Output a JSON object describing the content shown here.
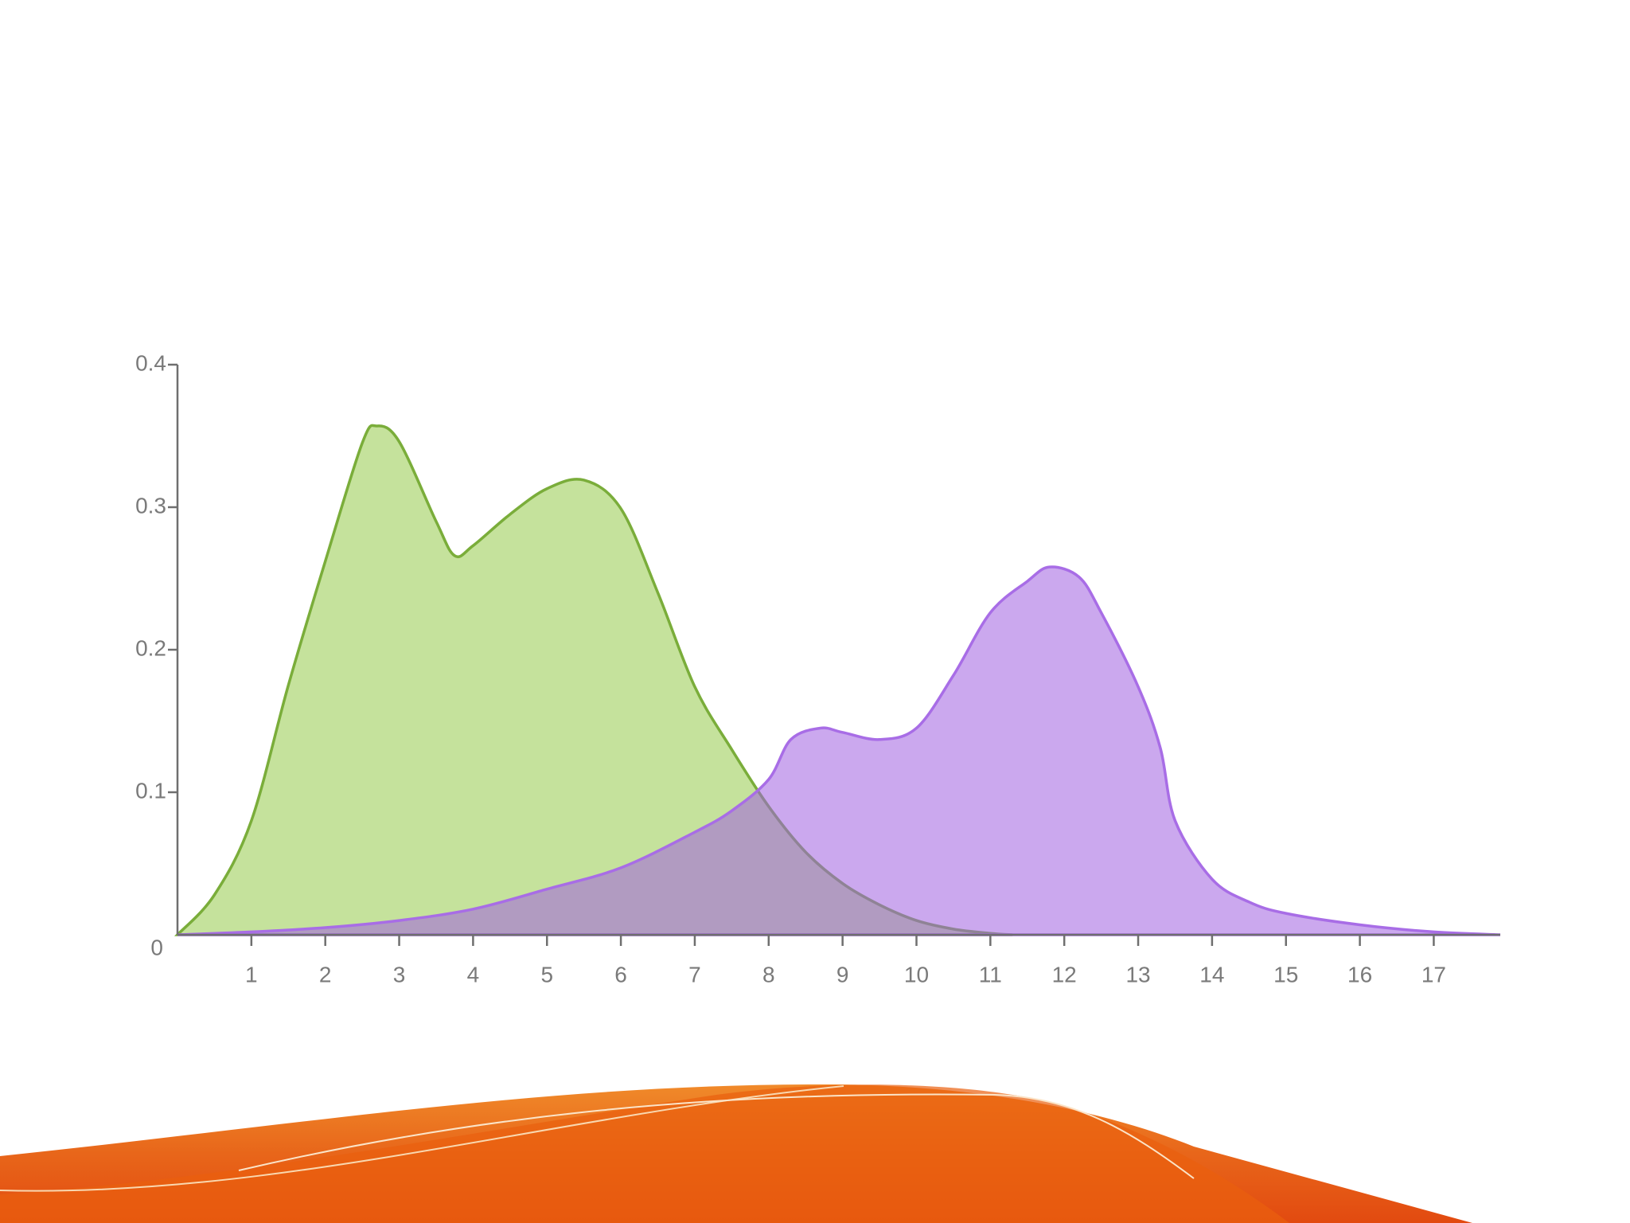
{
  "chart_data": {
    "type": "area",
    "series": [
      {
        "color": "#7aad3a",
        "fill": "#c5e29c",
        "x": [
          0,
          0.5,
          1,
          1.5,
          2,
          2.5,
          2.7,
          3,
          3.5,
          3.75,
          4,
          4.5,
          5,
          5.5,
          6,
          6.5,
          7,
          7.5,
          8,
          8.5,
          9,
          9.5,
          10,
          10.5,
          11,
          11.3
        ],
        "values": [
          0,
          0.028,
          0.08,
          0.175,
          0.262,
          0.345,
          0.357,
          0.346,
          0.29,
          0.266,
          0.273,
          0.295,
          0.313,
          0.319,
          0.299,
          0.24,
          0.174,
          0.13,
          0.09,
          0.058,
          0.036,
          0.021,
          0.01,
          0.004,
          0.001,
          0
        ]
      },
      {
        "color": "#a86de6",
        "fill": "#a060e0",
        "x": [
          0,
          1,
          2,
          3,
          4,
          5,
          6,
          7,
          7.5,
          8,
          8.3,
          8.7,
          9,
          9.5,
          10,
          10.5,
          11,
          11.5,
          11.8,
          12.2,
          12.5,
          13,
          13.3,
          13.5,
          14,
          14.5,
          15,
          16,
          17,
          17.9
        ],
        "values": [
          0,
          0.002,
          0.005,
          0.01,
          0.018,
          0.032,
          0.047,
          0.072,
          0.087,
          0.109,
          0.137,
          0.145,
          0.142,
          0.137,
          0.145,
          0.182,
          0.226,
          0.248,
          0.258,
          0.251,
          0.226,
          0.174,
          0.131,
          0.08,
          0.039,
          0.023,
          0.015,
          0.007,
          0.002,
          0
        ]
      }
    ],
    "xlim": [
      0,
      17.9
    ],
    "ylim": [
      0,
      0.4
    ],
    "xticks": [
      1,
      2,
      3,
      4,
      5,
      6,
      7,
      8,
      9,
      10,
      11,
      12,
      13,
      14,
      15,
      16,
      17
    ],
    "yticks": [
      0,
      0.1,
      0.2,
      0.3,
      0.4
    ]
  }
}
